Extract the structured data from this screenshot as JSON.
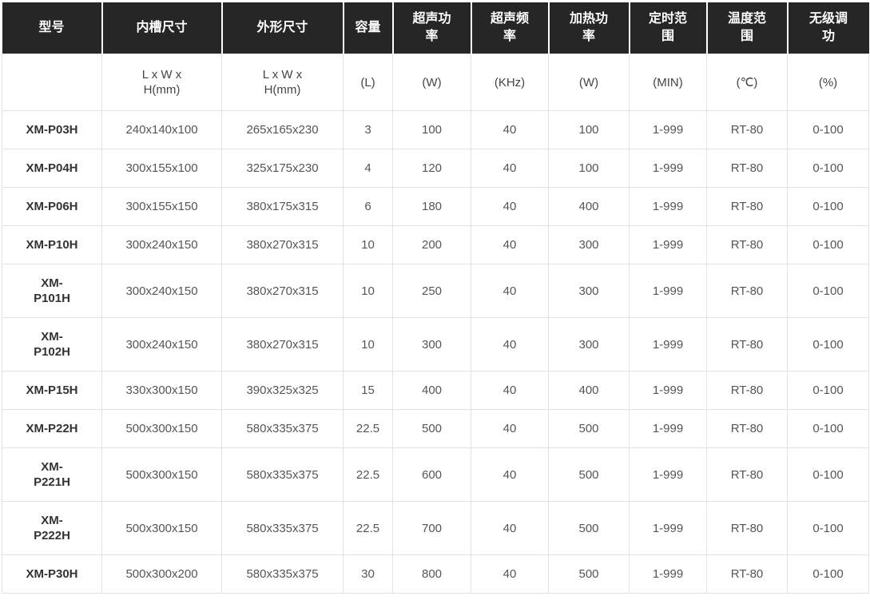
{
  "table": {
    "columns": [
      {
        "label": "型号",
        "unit": ""
      },
      {
        "label": "内槽尺寸",
        "unit": "L x W x\nH(mm)"
      },
      {
        "label": "外形尺寸",
        "unit": "L x W x\nH(mm)"
      },
      {
        "label": "容量",
        "unit": "(L)"
      },
      {
        "label": "超声功\n率",
        "unit": "(W)"
      },
      {
        "label": "超声频\n率",
        "unit": "(KHz)"
      },
      {
        "label": "加热功\n率",
        "unit": "(W)"
      },
      {
        "label": "定时范\n围",
        "unit": "(MIN)"
      },
      {
        "label": "温度范\n围",
        "unit": "(℃)"
      },
      {
        "label": "无级调\n功",
        "unit": "(%)"
      }
    ],
    "rows": [
      [
        "XM-P03H",
        "240x140x100",
        "265x165x230",
        "3",
        "100",
        "40",
        "100",
        "1-999",
        "RT-80",
        "0-100"
      ],
      [
        "XM-P04H",
        "300x155x100",
        "325x175x230",
        "4",
        "120",
        "40",
        "100",
        "1-999",
        "RT-80",
        "0-100"
      ],
      [
        "XM-P06H",
        "300x155x150",
        "380x175x315",
        "6",
        "180",
        "40",
        "400",
        "1-999",
        "RT-80",
        "0-100"
      ],
      [
        "XM-P10H",
        "300x240x150",
        "380x270x315",
        "10",
        "200",
        "40",
        "300",
        "1-999",
        "RT-80",
        "0-100"
      ],
      [
        "XM-\nP101H",
        "300x240x150",
        "380x270x315",
        "10",
        "250",
        "40",
        "300",
        "1-999",
        "RT-80",
        "0-100"
      ],
      [
        "XM-\nP102H",
        "300x240x150",
        "380x270x315",
        "10",
        "300",
        "40",
        "300",
        "1-999",
        "RT-80",
        "0-100"
      ],
      [
        "XM-P15H",
        "330x300x150",
        "390x325x325",
        "15",
        "400",
        "40",
        "400",
        "1-999",
        "RT-80",
        "0-100"
      ],
      [
        "XM-P22H",
        "500x300x150",
        "580x335x375",
        "22.5",
        "500",
        "40",
        "500",
        "1-999",
        "RT-80",
        "0-100"
      ],
      [
        "XM-\nP221H",
        "500x300x150",
        "580x335x375",
        "22.5",
        "600",
        "40",
        "500",
        "1-999",
        "RT-80",
        "0-100"
      ],
      [
        "XM-\nP222H",
        "500x300x150",
        "580x335x375",
        "22.5",
        "700",
        "40",
        "500",
        "1-999",
        "RT-80",
        "0-100"
      ],
      [
        "XM-P30H",
        "500x300x200",
        "580x335x375",
        "30",
        "800",
        "40",
        "500",
        "1-999",
        "RT-80",
        "0-100"
      ]
    ],
    "style": {
      "header_bg": "#262626",
      "header_text": "#ffffff",
      "border": "#e2e2e2",
      "model_text": "#333333",
      "cell_text": "#555555"
    }
  }
}
